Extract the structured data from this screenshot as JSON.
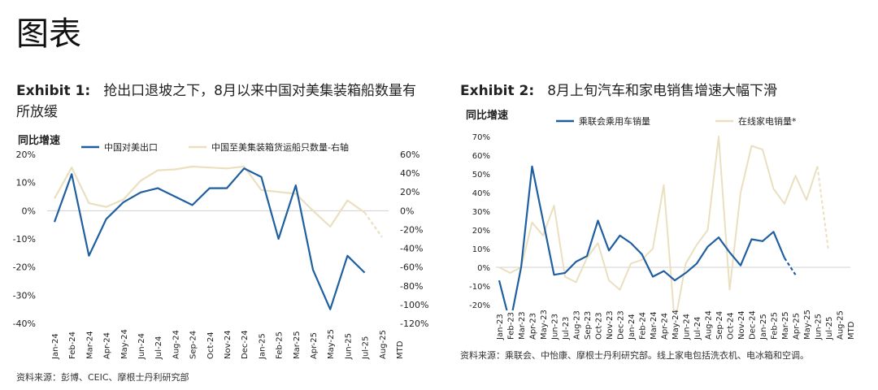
{
  "page_title": "图表",
  "exhibit1": {
    "label": "Exhibit 1:",
    "title_line1": "抢出口退坡之下，8月以来中国对美集装箱船数量有",
    "title_line2": "所放缓",
    "source": "资料来源：彭博、CEIC、摩根士丹利研究部"
  },
  "exhibit2": {
    "label": "Exhibit 2:",
    "title": "8月上旬汽车和家电销售增速大幅下滑",
    "source": "资料来源：乘联会、中怡康、摩根士丹利研究部。线上家电包括洗衣机、电冰箱和空调。"
  },
  "chart_data": [
    {
      "type": "line",
      "ylabel": "同比增速",
      "colors": {
        "left": "#1f5fa0",
        "right": "#eadfbf"
      },
      "categories": [
        "Jan-24",
        "Feb-24",
        "Mar-24",
        "Apr-24",
        "May-24",
        "Jun-24",
        "Jul-24",
        "Aug-24",
        "Sep-24",
        "Oct-24",
        "Nov-24",
        "Dec-24",
        "Jan-25",
        "Feb-25",
        "Mar-25",
        "Apr-25",
        "May-25",
        "Jun-25",
        "Jul-25",
        "Aug-25",
        "MTD"
      ],
      "y_left": {
        "ylim": [
          -40,
          20
        ],
        "ticks": [
          20,
          10,
          0,
          -10,
          -20,
          -30,
          -40
        ],
        "tick_labels": [
          "20%",
          "10%",
          "0%",
          "-10%",
          "-20%",
          "-30%",
          "-40%"
        ]
      },
      "y_right": {
        "ylim": [
          -120,
          60
        ],
        "ticks": [
          60,
          40,
          20,
          0,
          -20,
          -40,
          -60,
          -80,
          -100,
          -120
        ],
        "tick_labels": [
          "60%",
          "40%",
          "20%",
          "0%",
          "-20%",
          "-40%",
          "-60%",
          "-80%",
          "-100%",
          "-120%"
        ]
      },
      "series": [
        {
          "name": "中国对美出口",
          "axis": "left",
          "color": "#1f5fa0",
          "values": [
            -4,
            13,
            -16,
            -3,
            3,
            6.5,
            8,
            5,
            2,
            8,
            8,
            15,
            12,
            -10,
            9,
            -21,
            -35,
            -16,
            -22,
            null,
            null
          ]
        },
        {
          "name": "中国至美集装箱货运船只数量-右轴",
          "axis": "right",
          "color": "#eadfbf",
          "values": [
            13,
            46,
            8,
            4,
            12,
            32,
            43,
            44,
            47,
            46,
            45,
            47,
            22,
            20,
            18,
            0,
            -17,
            11,
            -2,
            -28,
            null
          ],
          "dashed_last": true
        }
      ]
    },
    {
      "type": "line",
      "ylabel": "同比增速",
      "colors": {
        "car": "#1f5fa0",
        "appliance": "#eadfbf"
      },
      "categories": [
        "Jan-23",
        "Feb-23",
        "Mar-23",
        "Apr-23",
        "May-23",
        "Jun-23",
        "Jul-23",
        "Aug-23",
        "Sep-23",
        "Oct-23",
        "Nov-23",
        "Dec-23",
        "Jan-24",
        "Feb-24",
        "Mar-24",
        "Apr-24",
        "May-24",
        "Jun-24",
        "Jul-24",
        "Aug-24",
        "Sep-24",
        "Oct-24",
        "Nov-24",
        "Dec-24",
        "Jan-25",
        "Feb-25",
        "Mar-25",
        "Apr-25",
        "May-25",
        "Jun-25",
        "Jul-25",
        "Aug-25",
        "MTD"
      ],
      "ylim": [
        -20,
        70
      ],
      "ticks": [
        70,
        60,
        50,
        40,
        30,
        20,
        10,
        0,
        -10,
        -20
      ],
      "tick_labels": [
        "70%",
        "60%",
        "50%",
        "40%",
        "30%",
        "20%",
        "10%",
        "0%",
        "-10%",
        "-20%"
      ],
      "series": [
        {
          "name": "乘联会乘用车销量",
          "color": "#1f5fa0",
          "values": [
            -7,
            -35,
            0,
            54,
            25,
            -4,
            -3,
            3,
            6,
            25,
            9,
            17,
            13,
            7,
            -5,
            -2,
            -7,
            -3,
            2,
            11,
            16,
            8,
            1,
            15,
            14,
            19,
            5,
            -4,
            null,
            null,
            null,
            null,
            null
          ],
          "dashed_last": true
        },
        {
          "name": "在线家电销量*",
          "color": "#eadfbf",
          "values": [
            0,
            -3,
            0,
            24,
            17,
            33,
            -5,
            -8,
            5,
            13,
            -7,
            -12,
            2,
            4,
            10,
            44,
            -50,
            2,
            12,
            20,
            70,
            -12,
            40,
            65,
            63,
            42,
            34,
            49,
            36,
            54,
            9,
            null,
            null
          ],
          "dashed_last": true
        }
      ]
    }
  ]
}
